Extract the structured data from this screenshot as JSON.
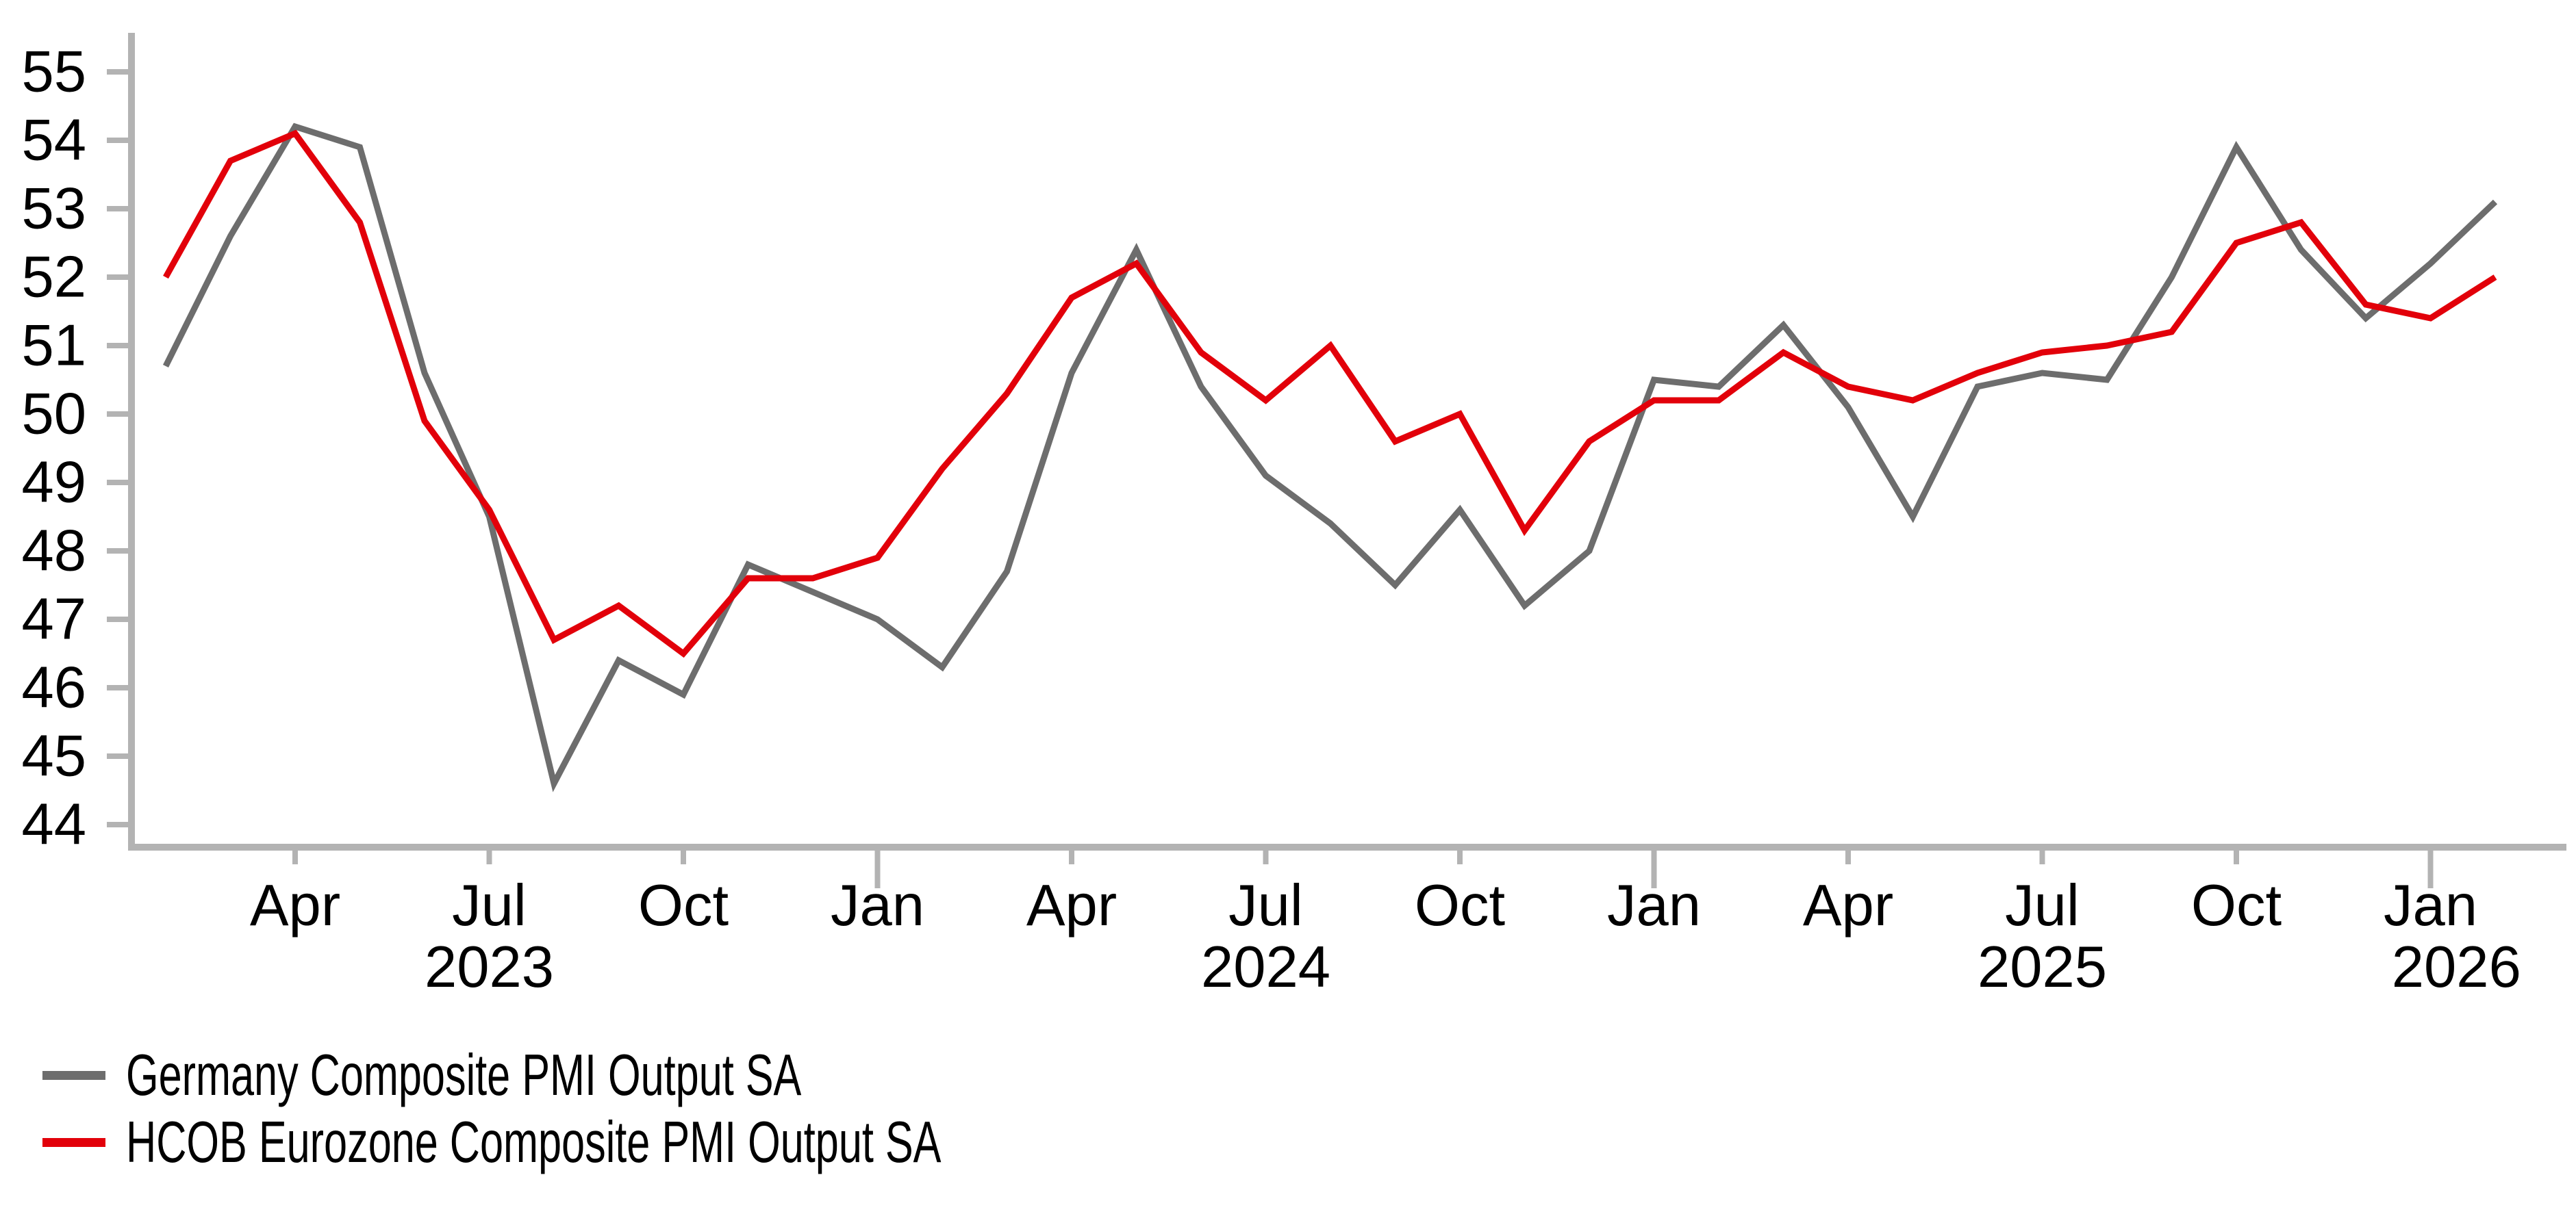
{
  "chart_data": {
    "type": "line",
    "title": "",
    "xlabel": "",
    "ylabel": "",
    "grid": false,
    "legend_position": "bottom-left",
    "ylim": [
      44,
      55
    ],
    "axis_color": "#b3b3b3",
    "text_color": "#000000",
    "x_months": [
      "Feb 2023",
      "Mar 2023",
      "Apr 2023",
      "May 2023",
      "Jun 2023",
      "Jul 2023",
      "Aug 2023",
      "Sep 2023",
      "Oct 2023",
      "Nov 2023",
      "Dec 2023",
      "Jan 2024",
      "Feb 2024",
      "Mar 2024",
      "Apr 2024",
      "May 2024",
      "Jun 2024",
      "Jul 2024",
      "Aug 2024",
      "Sep 2024",
      "Oct 2024",
      "Nov 2024",
      "Dec 2024",
      "Jan 2025",
      "Feb 2025",
      "Mar 2025",
      "Apr 2025",
      "May 2025",
      "Jun 2025",
      "Jul 2025",
      "Aug 2025",
      "Sep 2025",
      "Oct 2025",
      "Nov 2025",
      "Dec 2025",
      "Jan 2026",
      "Feb 2026"
    ],
    "series": [
      {
        "name": "Germany Composite PMI Output SA",
        "color": "#6d6d6d",
        "values": [
          50.7,
          52.6,
          54.2,
          53.9,
          50.6,
          48.5,
          44.6,
          46.4,
          45.9,
          47.8,
          47.4,
          47.0,
          46.3,
          47.7,
          50.6,
          52.4,
          50.4,
          49.1,
          48.4,
          47.5,
          48.6,
          47.2,
          48.0,
          50.5,
          50.4,
          51.3,
          50.1,
          48.5,
          50.4,
          50.6,
          50.5,
          52.0,
          53.9,
          52.4,
          51.4,
          52.2,
          53.1
        ]
      },
      {
        "name": "HCOB Eurozone Composite PMI Output SA",
        "color": "#e2000a",
        "values": [
          52.0,
          53.7,
          54.1,
          52.8,
          49.9,
          48.6,
          46.7,
          47.2,
          46.5,
          47.6,
          47.6,
          47.9,
          49.2,
          50.3,
          51.7,
          52.2,
          50.9,
          50.2,
          51.0,
          49.6,
          50.0,
          48.3,
          49.6,
          50.2,
          50.2,
          50.9,
          50.4,
          50.2,
          50.6,
          50.9,
          51.0,
          51.2,
          52.5,
          52.8,
          51.6,
          51.4,
          52.0
        ]
      }
    ],
    "y_tick_labels": [
      "44",
      "45",
      "46",
      "47",
      "48",
      "49",
      "50",
      "51",
      "52",
      "53",
      "54",
      "55"
    ],
    "x_tick_labels": [
      {
        "month_index": 2,
        "label": "Apr",
        "year_start": false
      },
      {
        "month_index": 5,
        "label": "Jul",
        "year_start": false
      },
      {
        "month_index": 8,
        "label": "Oct",
        "year_start": false
      },
      {
        "month_index": 11,
        "label": "Jan",
        "year_start": true
      },
      {
        "month_index": 14,
        "label": "Apr",
        "year_start": false
      },
      {
        "month_index": 17,
        "label": "Jul",
        "year_start": false
      },
      {
        "month_index": 20,
        "label": "Oct",
        "year_start": false
      },
      {
        "month_index": 23,
        "label": "Jan",
        "year_start": true
      },
      {
        "month_index": 26,
        "label": "Apr",
        "year_start": false
      },
      {
        "month_index": 29,
        "label": "Jul",
        "year_start": false
      },
      {
        "month_index": 32,
        "label": "Oct",
        "year_start": false
      },
      {
        "month_index": 35,
        "label": "Jan",
        "year_start": true
      }
    ],
    "year_labels": [
      {
        "label": "2023",
        "month_index": 5
      },
      {
        "label": "2024",
        "month_index": 17
      },
      {
        "label": "2025",
        "month_index": 29
      },
      {
        "label": "2026",
        "month_index": 35.4
      }
    ]
  }
}
